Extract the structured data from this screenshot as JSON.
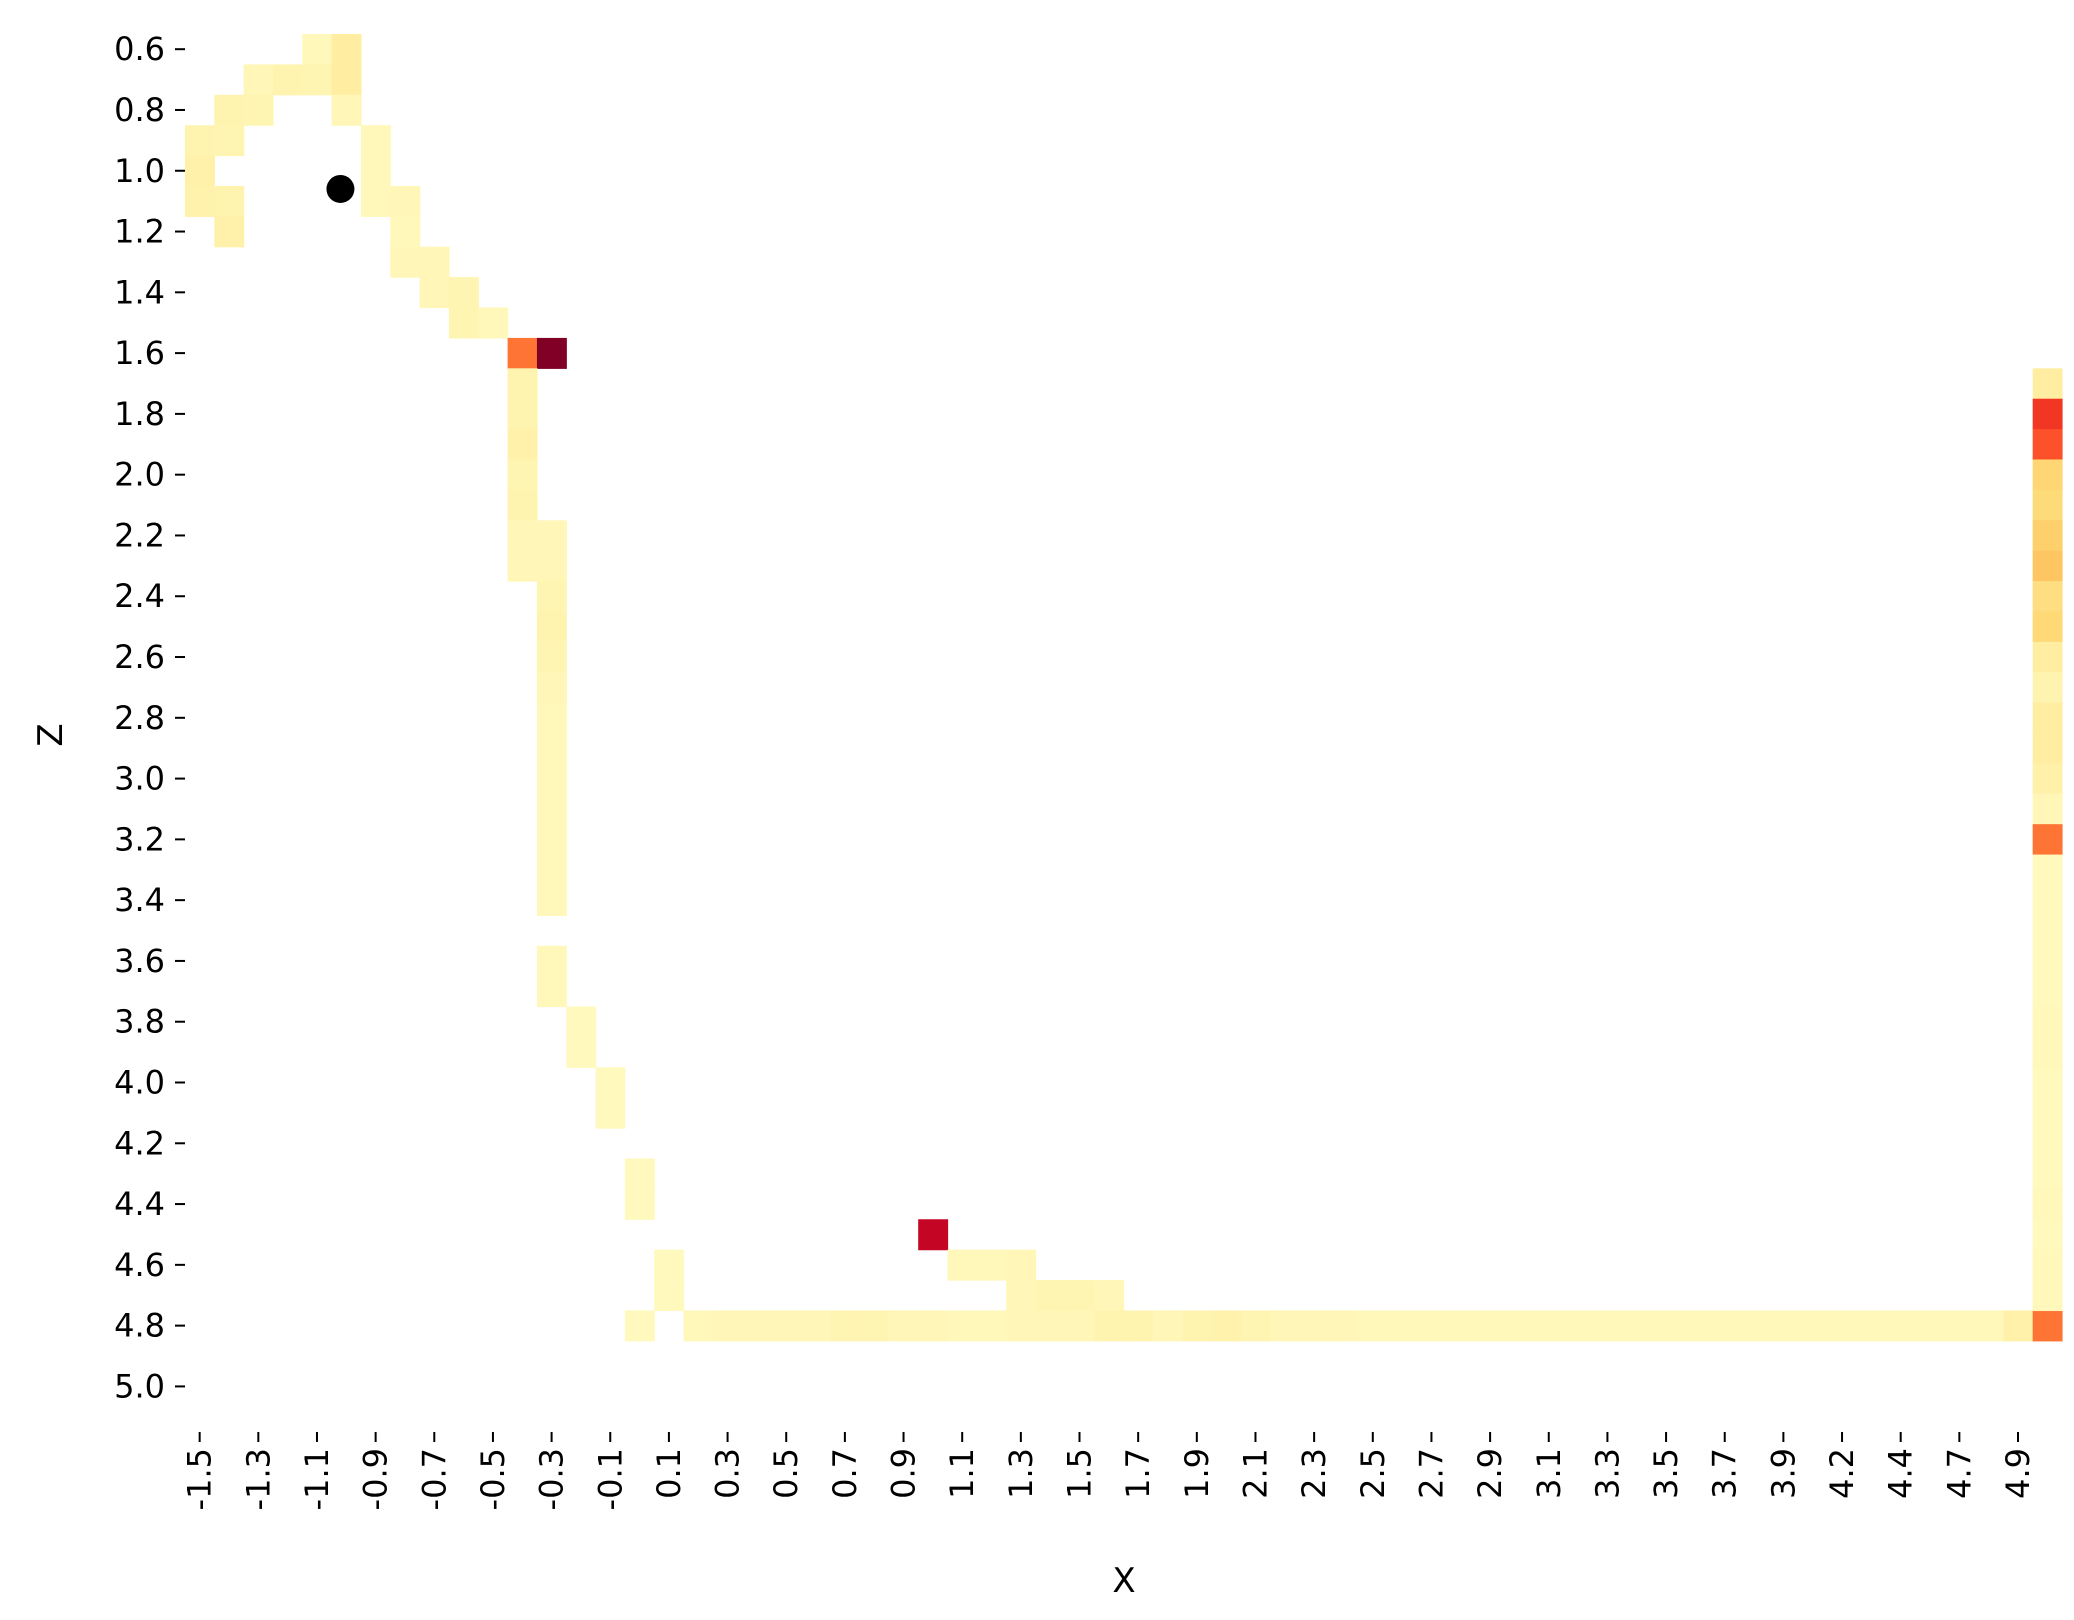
{
  "chart_data": {
    "type": "heatmap",
    "xlabel": "X",
    "ylabel": "Z",
    "x_tick_labels": [
      "-1.5",
      "-1.3",
      "-1.1",
      "-0.9",
      "-0.7",
      "-0.5",
      "-0.3",
      "-0.1",
      "0.1",
      "0.3",
      "0.5",
      "0.7",
      "0.9",
      "1.1",
      "1.3",
      "1.5",
      "1.7",
      "1.9",
      "2.1",
      "2.3",
      "2.5",
      "2.7",
      "2.9",
      "3.1",
      "3.3",
      "3.5",
      "3.7",
      "3.9",
      "4.2",
      "4.4",
      "4.7",
      "4.9"
    ],
    "y_tick_labels": [
      "0.6",
      "0.8",
      "1.0",
      "1.2",
      "1.4",
      "1.6",
      "1.8",
      "2.0",
      "2.2",
      "2.4",
      "2.6",
      "2.8",
      "3.0",
      "3.2",
      "3.4",
      "3.6",
      "3.8",
      "4.0",
      "4.2",
      "4.4",
      "4.6",
      "4.8",
      "5.0"
    ],
    "grid": false,
    "colormap": "YlOrRd",
    "colormap_stops": [
      "#ffffcc",
      "#ffeda0",
      "#fed976",
      "#feb24c",
      "#fd8d3c",
      "#fc4e2a",
      "#e31a1c",
      "#bd0026",
      "#800026"
    ],
    "n_columns": 64,
    "n_rows": 46,
    "cells": [
      [
        4,
        0,
        0.05
      ],
      [
        5,
        0,
        0.12
      ],
      [
        2,
        1,
        0.06
      ],
      [
        3,
        1,
        0.08
      ],
      [
        4,
        1,
        0.07
      ],
      [
        5,
        1,
        0.12
      ],
      [
        1,
        2,
        0.08
      ],
      [
        2,
        2,
        0.07
      ],
      [
        5,
        2,
        0.06
      ],
      [
        0,
        3,
        0.08
      ],
      [
        1,
        3,
        0.07
      ],
      [
        6,
        3,
        0.05
      ],
      [
        0,
        4,
        0.1
      ],
      [
        6,
        4,
        0.05
      ],
      [
        0,
        5,
        0.09
      ],
      [
        1,
        5,
        0.08
      ],
      [
        6,
        5,
        0.05
      ],
      [
        7,
        5,
        0.06
      ],
      [
        1,
        6,
        0.1
      ],
      [
        7,
        6,
        0.05
      ],
      [
        7,
        7,
        0.06
      ],
      [
        8,
        7,
        0.06
      ],
      [
        8,
        8,
        0.06
      ],
      [
        9,
        8,
        0.07
      ],
      [
        9,
        9,
        0.07
      ],
      [
        10,
        9,
        0.05
      ],
      [
        11,
        10,
        0.55
      ],
      [
        12,
        10,
        1.0
      ],
      [
        11,
        11,
        0.08
      ],
      [
        11,
        12,
        0.08
      ],
      [
        11,
        13,
        0.1
      ],
      [
        11,
        14,
        0.07
      ],
      [
        11,
        15,
        0.08
      ],
      [
        11,
        16,
        0.06
      ],
      [
        12,
        16,
        0.06
      ],
      [
        11,
        17,
        0.06
      ],
      [
        12,
        17,
        0.06
      ],
      [
        12,
        18,
        0.07
      ],
      [
        12,
        19,
        0.08
      ],
      [
        12,
        20,
        0.07
      ],
      [
        12,
        21,
        0.06
      ],
      [
        12,
        22,
        0.05
      ],
      [
        12,
        23,
        0.05
      ],
      [
        12,
        24,
        0.05
      ],
      [
        12,
        25,
        0.05
      ],
      [
        12,
        26,
        0.05
      ],
      [
        12,
        27,
        0.05
      ],
      [
        12,
        28,
        0.05
      ],
      [
        12,
        30,
        0.05
      ],
      [
        12,
        31,
        0.05
      ],
      [
        13,
        32,
        0.04
      ],
      [
        13,
        33,
        0.04
      ],
      [
        14,
        34,
        0.04
      ],
      [
        14,
        35,
        0.04
      ],
      [
        15,
        37,
        0.04
      ],
      [
        15,
        38,
        0.04
      ],
      [
        25,
        39,
        0.85
      ],
      [
        16,
        40,
        0.04
      ],
      [
        26,
        40,
        0.05
      ],
      [
        27,
        40,
        0.05
      ],
      [
        28,
        40,
        0.06
      ],
      [
        16,
        41,
        0.04
      ],
      [
        28,
        41,
        0.06
      ],
      [
        29,
        41,
        0.07
      ],
      [
        30,
        41,
        0.07
      ],
      [
        31,
        41,
        0.06
      ],
      [
        15,
        42,
        0.04
      ],
      [
        17,
        42,
        0.05
      ],
      [
        18,
        42,
        0.06
      ],
      [
        19,
        42,
        0.06
      ],
      [
        20,
        42,
        0.06
      ],
      [
        21,
        42,
        0.06
      ],
      [
        22,
        42,
        0.07
      ],
      [
        23,
        42,
        0.07
      ],
      [
        24,
        42,
        0.06
      ],
      [
        25,
        42,
        0.06
      ],
      [
        26,
        42,
        0.05
      ],
      [
        27,
        42,
        0.05
      ],
      [
        28,
        42,
        0.06
      ],
      [
        29,
        42,
        0.06
      ],
      [
        30,
        42,
        0.06
      ],
      [
        31,
        42,
        0.08
      ],
      [
        32,
        42,
        0.08
      ],
      [
        33,
        42,
        0.06
      ],
      [
        34,
        42,
        0.08
      ],
      [
        35,
        42,
        0.09
      ],
      [
        36,
        42,
        0.07
      ],
      [
        37,
        42,
        0.06
      ],
      [
        38,
        42,
        0.06
      ],
      [
        39,
        42,
        0.06
      ],
      [
        40,
        42,
        0.05
      ],
      [
        41,
        42,
        0.05
      ],
      [
        42,
        42,
        0.05
      ],
      [
        43,
        42,
        0.05
      ],
      [
        44,
        42,
        0.05
      ],
      [
        45,
        42,
        0.05
      ],
      [
        46,
        42,
        0.05
      ],
      [
        47,
        42,
        0.05
      ],
      [
        48,
        42,
        0.05
      ],
      [
        49,
        42,
        0.05
      ],
      [
        50,
        42,
        0.05
      ],
      [
        51,
        42,
        0.05
      ],
      [
        52,
        42,
        0.05
      ],
      [
        53,
        42,
        0.05
      ],
      [
        54,
        42,
        0.05
      ],
      [
        55,
        42,
        0.05
      ],
      [
        56,
        42,
        0.05
      ],
      [
        57,
        42,
        0.05
      ],
      [
        58,
        42,
        0.05
      ],
      [
        59,
        42,
        0.05
      ],
      [
        60,
        42,
        0.05
      ],
      [
        61,
        42,
        0.05
      ],
      [
        62,
        42,
        0.1
      ],
      [
        63,
        42,
        0.55
      ],
      [
        63,
        11,
        0.12
      ],
      [
        63,
        12,
        0.68
      ],
      [
        63,
        13,
        0.62
      ],
      [
        63,
        14,
        0.26
      ],
      [
        63,
        15,
        0.24
      ],
      [
        63,
        16,
        0.28
      ],
      [
        63,
        17,
        0.31
      ],
      [
        63,
        18,
        0.22
      ],
      [
        63,
        19,
        0.25
      ],
      [
        63,
        20,
        0.12
      ],
      [
        63,
        21,
        0.08
      ],
      [
        63,
        22,
        0.12
      ],
      [
        63,
        23,
        0.12
      ],
      [
        63,
        24,
        0.1
      ],
      [
        63,
        25,
        0.06
      ],
      [
        63,
        26,
        0.55
      ],
      [
        63,
        27,
        0.04
      ],
      [
        63,
        28,
        0.04
      ],
      [
        63,
        29,
        0.04
      ],
      [
        63,
        30,
        0.04
      ],
      [
        63,
        31,
        0.04
      ],
      [
        63,
        32,
        0.05
      ],
      [
        63,
        33,
        0.05
      ],
      [
        63,
        34,
        0.04
      ],
      [
        63,
        35,
        0.04
      ],
      [
        63,
        36,
        0.04
      ],
      [
        63,
        37,
        0.04
      ],
      [
        63,
        38,
        0.05
      ],
      [
        63,
        39,
        0.04
      ],
      [
        63,
        40,
        0.05
      ],
      [
        63,
        41,
        0.05
      ]
    ],
    "marker": {
      "x": -1.02,
      "z": 1.06,
      "color": "#000000"
    }
  }
}
